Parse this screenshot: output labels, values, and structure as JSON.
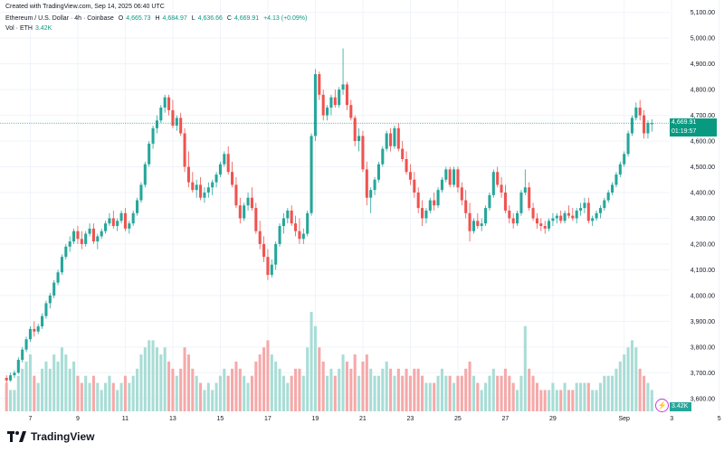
{
  "header": {
    "created": "Created with TradingView.com, Sep 14, 2025 06:40 UTC",
    "symbol": "Ethereum / U.S. Dollar · 4h · Coinbase",
    "o_label": "O",
    "o": "4,665.73",
    "h_label": "H",
    "h": "4,684.97",
    "l_label": "L",
    "l": "4,636.66",
    "c_label": "C",
    "c": "4,669.91",
    "change": "+4.13 (+0.09%)",
    "vol_label": "Vol · ETH",
    "vol": "3.42K"
  },
  "price_badge": {
    "price": "4,669.91",
    "countdown": "01:19:57"
  },
  "volume_badge": "3.42K",
  "footer": {
    "brand": "TradingView"
  },
  "colors": {
    "up": "#26a69a",
    "down": "#ef5350",
    "vol_up": "#a8ddd6",
    "vol_down": "#f5a9a9",
    "grid": "#f0f3fa"
  },
  "chart_data": {
    "type": "candlestick",
    "interval": "4h",
    "y_axis_labels": [
      "5,100.00",
      "5,000.00",
      "4,900.00",
      "4,800.00",
      "4,700.00",
      "4,600.00",
      "4,500.00",
      "4,400.00",
      "4,300.00",
      "4,200.00",
      "4,100.00",
      "4,000.00",
      "3,900.00",
      "3,800.00",
      "3,700.00",
      "3,600.00"
    ],
    "ylim": [
      3550,
      5120
    ],
    "x_axis_labels": [
      "7",
      "9",
      "11",
      "13",
      "15",
      "17",
      "19",
      "21",
      "23",
      "25",
      "27",
      "29",
      "Sep",
      "3",
      "5",
      "7",
      "9",
      "11",
      "13",
      "15"
    ],
    "start_date": "2025-08-06",
    "candles_per_day": 6,
    "volume_max_k": 14,
    "candles": [
      [
        3680,
        3690,
        3660,
        3670,
        4
      ],
      [
        3670,
        3700,
        3665,
        3690,
        3
      ],
      [
        3690,
        3710,
        3680,
        3700,
        3
      ],
      [
        3700,
        3760,
        3695,
        3750,
        5
      ],
      [
        3750,
        3800,
        3740,
        3790,
        6
      ],
      [
        3790,
        3840,
        3780,
        3830,
        7
      ],
      [
        3830,
        3880,
        3820,
        3870,
        8
      ],
      [
        3870,
        3900,
        3840,
        3860,
        5
      ],
      [
        3860,
        3890,
        3850,
        3880,
        4
      ],
      [
        3880,
        3930,
        3870,
        3920,
        6
      ],
      [
        3920,
        3980,
        3910,
        3970,
        7
      ],
      [
        3970,
        4010,
        3950,
        4000,
        6
      ],
      [
        4000,
        4060,
        3990,
        4050,
        8
      ],
      [
        4050,
        4100,
        4040,
        4090,
        7
      ],
      [
        4090,
        4160,
        4080,
        4150,
        9
      ],
      [
        4150,
        4200,
        4140,
        4190,
        8
      ],
      [
        4190,
        4230,
        4170,
        4210,
        6
      ],
      [
        4210,
        4260,
        4200,
        4250,
        7
      ],
      [
        4250,
        4270,
        4200,
        4220,
        5
      ],
      [
        4220,
        4250,
        4180,
        4200,
        4
      ],
      [
        4200,
        4250,
        4190,
        4240,
        5
      ],
      [
        4240,
        4280,
        4230,
        4260,
        4
      ],
      [
        4260,
        4280,
        4200,
        4210,
        5
      ],
      [
        4210,
        4240,
        4180,
        4230,
        4
      ],
      [
        4230,
        4260,
        4220,
        4250,
        3
      ],
      [
        4250,
        4290,
        4240,
        4280,
        4
      ],
      [
        4280,
        4320,
        4270,
        4300,
        5
      ],
      [
        4300,
        4330,
        4260,
        4270,
        4
      ],
      [
        4270,
        4300,
        4250,
        4290,
        3
      ],
      [
        4290,
        4330,
        4280,
        4320,
        4
      ],
      [
        4320,
        4340,
        4250,
        4260,
        5
      ],
      [
        4260,
        4290,
        4240,
        4280,
        4
      ],
      [
        4280,
        4330,
        4270,
        4320,
        5
      ],
      [
        4320,
        4380,
        4310,
        4370,
        6
      ],
      [
        4370,
        4440,
        4360,
        4430,
        8
      ],
      [
        4430,
        4520,
        4420,
        4510,
        9
      ],
      [
        4510,
        4600,
        4500,
        4590,
        10
      ],
      [
        4590,
        4660,
        4570,
        4650,
        10
      ],
      [
        4650,
        4700,
        4630,
        4680,
        9
      ],
      [
        4680,
        4740,
        4670,
        4730,
        8
      ],
      [
        4730,
        4780,
        4710,
        4770,
        9
      ],
      [
        4770,
        4780,
        4700,
        4720,
        7
      ],
      [
        4720,
        4760,
        4650,
        4660,
        6
      ],
      [
        4660,
        4700,
        4640,
        4690,
        5
      ],
      [
        4690,
        4710,
        4620,
        4630,
        6
      ],
      [
        4630,
        4650,
        4480,
        4500,
        9
      ],
      [
        4500,
        4560,
        4420,
        4440,
        8
      ],
      [
        4440,
        4480,
        4400,
        4410,
        6
      ],
      [
        4410,
        4450,
        4380,
        4430,
        5
      ],
      [
        4430,
        4460,
        4370,
        4380,
        4
      ],
      [
        4380,
        4420,
        4360,
        4400,
        3
      ],
      [
        4400,
        4440,
        4380,
        4420,
        4
      ],
      [
        4420,
        4450,
        4390,
        4440,
        3
      ],
      [
        4440,
        4480,
        4420,
        4470,
        4
      ],
      [
        4470,
        4520,
        4460,
        4510,
        5
      ],
      [
        4510,
        4560,
        4500,
        4550,
        6
      ],
      [
        4550,
        4580,
        4470,
        4480,
        5
      ],
      [
        4480,
        4520,
        4420,
        4430,
        6
      ],
      [
        4430,
        4460,
        4340,
        4350,
        7
      ],
      [
        4350,
        4380,
        4280,
        4300,
        6
      ],
      [
        4300,
        4360,
        4290,
        4350,
        5
      ],
      [
        4350,
        4400,
        4330,
        4380,
        4
      ],
      [
        4380,
        4420,
        4330,
        4340,
        5
      ],
      [
        4340,
        4360,
        4240,
        4250,
        7
      ],
      [
        4250,
        4290,
        4180,
        4200,
        8
      ],
      [
        4200,
        4230,
        4130,
        4150,
        9
      ],
      [
        4150,
        4180,
        4060,
        4080,
        10
      ],
      [
        4080,
        4140,
        4070,
        4120,
        8
      ],
      [
        4120,
        4210,
        4100,
        4200,
        7
      ],
      [
        4200,
        4280,
        4190,
        4270,
        6
      ],
      [
        4270,
        4320,
        4240,
        4300,
        5
      ],
      [
        4300,
        4340,
        4280,
        4330,
        4
      ],
      [
        4330,
        4350,
        4270,
        4280,
        5
      ],
      [
        4280,
        4310,
        4230,
        4250,
        6
      ],
      [
        4250,
        4300,
        4200,
        4220,
        6
      ],
      [
        4220,
        4260,
        4200,
        4240,
        5
      ],
      [
        4240,
        4330,
        4230,
        4320,
        9
      ],
      [
        4320,
        4630,
        4310,
        4620,
        14
      ],
      [
        4620,
        4880,
        4600,
        4860,
        12
      ],
      [
        4860,
        4870,
        4760,
        4780,
        9
      ],
      [
        4780,
        4800,
        4680,
        4700,
        7
      ],
      [
        4700,
        4740,
        4680,
        4730,
        5
      ],
      [
        4730,
        4780,
        4700,
        4770,
        6
      ],
      [
        4770,
        4800,
        4730,
        4740,
        5
      ],
      [
        4740,
        4810,
        4730,
        4800,
        6
      ],
      [
        4800,
        4960,
        4780,
        4820,
        8
      ],
      [
        4820,
        4830,
        4720,
        4740,
        7
      ],
      [
        4740,
        4760,
        4680,
        4690,
        6
      ],
      [
        4690,
        4700,
        4580,
        4600,
        8
      ],
      [
        4600,
        4650,
        4560,
        4620,
        5
      ],
      [
        4620,
        4640,
        4480,
        4490,
        7
      ],
      [
        4490,
        4520,
        4350,
        4380,
        8
      ],
      [
        4380,
        4420,
        4320,
        4410,
        6
      ],
      [
        4410,
        4460,
        4390,
        4450,
        5
      ],
      [
        4450,
        4520,
        4440,
        4510,
        5
      ],
      [
        4510,
        4580,
        4500,
        4570,
        6
      ],
      [
        4570,
        4640,
        4560,
        4630,
        7
      ],
      [
        4630,
        4650,
        4560,
        4580,
        6
      ],
      [
        4580,
        4660,
        4570,
        4650,
        5
      ],
      [
        4650,
        4670,
        4560,
        4570,
        6
      ],
      [
        4570,
        4600,
        4520,
        4530,
        5
      ],
      [
        4530,
        4560,
        4470,
        4480,
        6
      ],
      [
        4480,
        4510,
        4430,
        4450,
        5
      ],
      [
        4450,
        4480,
        4380,
        4400,
        6
      ],
      [
        4400,
        4420,
        4320,
        4340,
        6
      ],
      [
        4340,
        4370,
        4270,
        4300,
        5
      ],
      [
        4300,
        4340,
        4280,
        4330,
        4
      ],
      [
        4330,
        4380,
        4320,
        4370,
        4
      ],
      [
        4370,
        4400,
        4330,
        4350,
        4
      ],
      [
        4350,
        4420,
        4340,
        4410,
        5
      ],
      [
        4410,
        4460,
        4400,
        4450,
        6
      ],
      [
        4450,
        4500,
        4440,
        4490,
        5
      ],
      [
        4490,
        4500,
        4420,
        4430,
        5
      ],
      [
        4430,
        4500,
        4420,
        4490,
        4
      ],
      [
        4490,
        4500,
        4400,
        4420,
        5
      ],
      [
        4420,
        4440,
        4350,
        4370,
        5
      ],
      [
        4370,
        4410,
        4300,
        4320,
        6
      ],
      [
        4320,
        4360,
        4210,
        4250,
        7
      ],
      [
        4250,
        4300,
        4240,
        4290,
        5
      ],
      [
        4290,
        4320,
        4260,
        4270,
        4
      ],
      [
        4270,
        4300,
        4250,
        4280,
        3
      ],
      [
        4280,
        4350,
        4270,
        4340,
        4
      ],
      [
        4340,
        4400,
        4330,
        4390,
        5
      ],
      [
        4390,
        4490,
        4380,
        4480,
        6
      ],
      [
        4480,
        4500,
        4420,
        4430,
        5
      ],
      [
        4430,
        4460,
        4380,
        4400,
        5
      ],
      [
        4400,
        4430,
        4320,
        4330,
        6
      ],
      [
        4330,
        4350,
        4280,
        4300,
        5
      ],
      [
        4300,
        4320,
        4260,
        4280,
        4
      ],
      [
        4280,
        4330,
        4270,
        4320,
        3
      ],
      [
        4320,
        4410,
        4310,
        4400,
        5
      ],
      [
        4400,
        4490,
        4390,
        4420,
        12
      ],
      [
        4420,
        4440,
        4330,
        4340,
        6
      ],
      [
        4340,
        4360,
        4290,
        4300,
        5
      ],
      [
        4300,
        4320,
        4260,
        4280,
        4
      ],
      [
        4280,
        4300,
        4250,
        4270,
        3
      ],
      [
        4270,
        4290,
        4240,
        4260,
        3
      ],
      [
        4260,
        4300,
        4250,
        4290,
        3
      ],
      [
        4290,
        4320,
        4270,
        4300,
        4
      ],
      [
        4300,
        4320,
        4280,
        4310,
        3
      ],
      [
        4310,
        4330,
        4280,
        4290,
        3
      ],
      [
        4290,
        4330,
        4280,
        4320,
        4
      ],
      [
        4320,
        4350,
        4300,
        4310,
        3
      ],
      [
        4310,
        4340,
        4290,
        4300,
        3
      ],
      [
        4300,
        4340,
        4280,
        4330,
        4
      ],
      [
        4330,
        4360,
        4310,
        4340,
        4
      ],
      [
        4340,
        4380,
        4320,
        4360,
        4
      ],
      [
        4360,
        4380,
        4280,
        4290,
        4
      ],
      [
        4290,
        4310,
        4270,
        4300,
        3
      ],
      [
        4300,
        4330,
        4290,
        4320,
        3
      ],
      [
        4320,
        4350,
        4300,
        4340,
        4
      ],
      [
        4340,
        4380,
        4330,
        4370,
        5
      ],
      [
        4370,
        4410,
        4360,
        4400,
        5
      ],
      [
        4400,
        4440,
        4390,
        4430,
        5
      ],
      [
        4430,
        4480,
        4420,
        4470,
        6
      ],
      [
        4470,
        4520,
        4460,
        4510,
        7
      ],
      [
        4510,
        4560,
        4500,
        4550,
        8
      ],
      [
        4550,
        4640,
        4540,
        4630,
        9
      ],
      [
        4630,
        4700,
        4620,
        4690,
        10
      ],
      [
        4690,
        4750,
        4680,
        4730,
        9
      ],
      [
        4730,
        4760,
        4680,
        4700,
        6
      ],
      [
        4700,
        4720,
        4610,
        4630,
        5
      ],
      [
        4630,
        4680,
        4610,
        4670,
        4
      ],
      [
        4665.73,
        4684.97,
        4636.66,
        4669.91,
        3
      ]
    ]
  }
}
